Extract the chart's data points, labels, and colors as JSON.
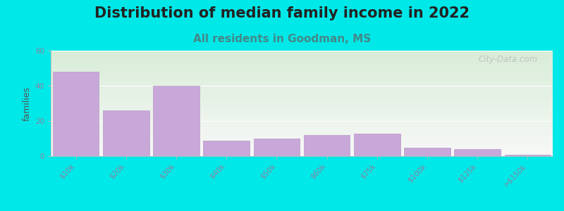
{
  "title": "Distribution of median family income in 2022",
  "subtitle": "All residents in Goodman, MS",
  "categories": [
    "$10k",
    "$20k",
    "$30k",
    "$40k",
    "$50k",
    "$60k",
    "$75k",
    "$100k",
    "$125k",
    ">$150k"
  ],
  "values": [
    48,
    26,
    40,
    9,
    10,
    12,
    13,
    5,
    4,
    1
  ],
  "bar_color": "#c8a8d8",
  "bar_edge_color": "#b898c8",
  "background_outer": "#00e8e8",
  "plot_bg_color_topleft": "#d8edd8",
  "plot_bg_color_bottomright": "#f8f8f8",
  "ylabel": "families",
  "ylim": [
    0,
    60
  ],
  "yticks": [
    0,
    20,
    40,
    60
  ],
  "watermark": "City-Data.com",
  "title_fontsize": 15,
  "subtitle_fontsize": 11,
  "subtitle_color": "#448888",
  "tick_label_color": "#9080a0",
  "tick_label_fontsize": 7.5
}
